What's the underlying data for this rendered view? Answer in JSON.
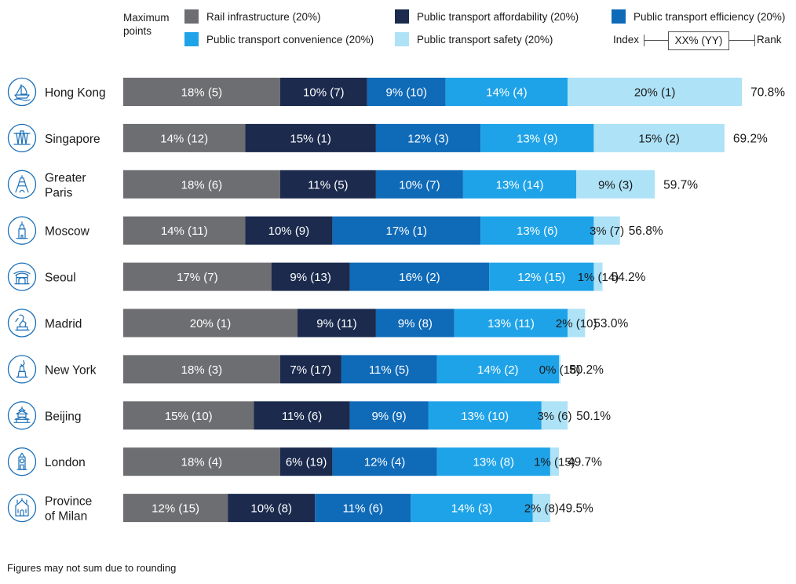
{
  "legend": {
    "max_points_label": "Maximum\npoints",
    "key_index": "Index",
    "key_value": "XX% (YY)",
    "key_rank": "Rank"
  },
  "colors": {
    "rail": "#6d6e71",
    "affordability": "#1b2a4d",
    "efficiency": "#0f6ab8",
    "convenience": "#1ea3e8",
    "safety": "#aee2f7"
  },
  "footnote": "Figures may not sum due to rounding",
  "chart_data": {
    "type": "bar",
    "orientation": "horizontal",
    "stacked": true,
    "categories": [
      "Hong Kong",
      "Singapore",
      "Greater Paris",
      "Moscow",
      "Seoul",
      "Madrid",
      "New York",
      "Beijing",
      "London",
      "Province of Milan"
    ],
    "category_lines": [
      [
        "Hong Kong"
      ],
      [
        "Singapore"
      ],
      [
        "Greater",
        "Paris"
      ],
      [
        "Moscow"
      ],
      [
        "Seoul"
      ],
      [
        "Madrid"
      ],
      [
        "New York"
      ],
      [
        "Beijing"
      ],
      [
        "London"
      ],
      [
        "Province",
        "of Milan"
      ]
    ],
    "icons": [
      "junk-boat-icon",
      "supertrees-icon",
      "eiffel-tower-icon",
      "kremlin-tower-icon",
      "seoul-gate-icon",
      "madrid-statue-icon",
      "statue-of-liberty-icon",
      "temple-of-heaven-icon",
      "big-ben-icon",
      "milan-cathedral-icon"
    ],
    "series": [
      {
        "name": "Rail infrastructure (20%)",
        "color": "#6d6e71",
        "values": [
          18,
          14,
          18,
          14,
          17,
          20,
          18,
          15,
          18,
          12
        ],
        "ranks": [
          5,
          12,
          6,
          11,
          7,
          1,
          3,
          10,
          4,
          15
        ]
      },
      {
        "name": "Public transport affordability (20%)",
        "color": "#1b2a4d",
        "values": [
          10,
          15,
          11,
          10,
          9,
          9,
          7,
          11,
          6,
          10
        ],
        "ranks": [
          7,
          1,
          5,
          9,
          13,
          11,
          17,
          6,
          19,
          8
        ]
      },
      {
        "name": "Public transport efficiency (20%)",
        "color": "#0f6ab8",
        "values": [
          9,
          12,
          10,
          17,
          16,
          9,
          11,
          9,
          12,
          11
        ],
        "ranks": [
          10,
          3,
          7,
          1,
          2,
          8,
          5,
          9,
          4,
          6
        ]
      },
      {
        "name": "Public transport convenience (20%)",
        "color": "#1ea3e8",
        "values": [
          14,
          13,
          13,
          13,
          12,
          13,
          14,
          13,
          13,
          14
        ],
        "ranks": [
          4,
          9,
          14,
          6,
          15,
          11,
          2,
          10,
          8,
          3
        ]
      },
      {
        "name": "Public transport safety (20%)",
        "color": "#aee2f7",
        "values": [
          20,
          15,
          9,
          3,
          1,
          2,
          0,
          3,
          1,
          2
        ],
        "ranks": [
          1,
          2,
          3,
          7,
          14,
          10,
          18,
          6,
          15,
          8
        ]
      }
    ],
    "totals": [
      "70.8%",
      "69.2%",
      "59.7%",
      "56.8%",
      "54.2%",
      "53.0%",
      "50.2%",
      "50.1%",
      "49.7%",
      "49.5%"
    ],
    "total_values": [
      70.8,
      69.2,
      59.7,
      56.8,
      54.2,
      53.0,
      50.2,
      50.1,
      49.7,
      49.5
    ],
    "unit": "%"
  }
}
